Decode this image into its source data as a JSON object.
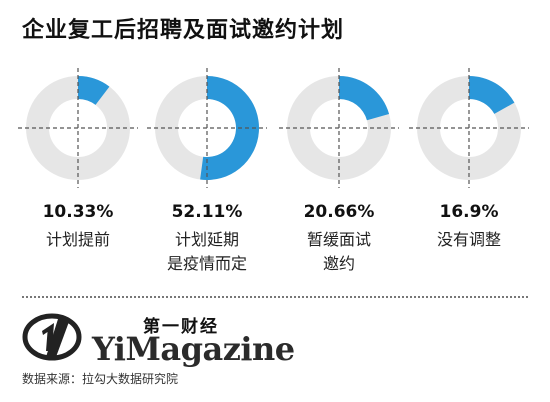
{
  "title": "企业复工后招聘及面试邀约计划",
  "chart_data": {
    "type": "pie",
    "style": "donut",
    "unit": "%",
    "categories": [
      "计划提前",
      "计划延期是疫情而定",
      "暂缓面试邀约",
      "没有调整"
    ],
    "values": [
      10.33,
      52.11,
      20.66,
      16.9
    ],
    "items": [
      {
        "value_label": "10.33%",
        "label_lines": [
          "计划提前"
        ]
      },
      {
        "value_label": "52.11%",
        "label_lines": [
          "计划延期",
          "是疫情而定"
        ]
      },
      {
        "value_label": "20.66%",
        "label_lines": [
          "暂缓面试",
          "邀约"
        ]
      },
      {
        "value_label": "16.9%",
        "label_lines": [
          "没有调整"
        ]
      }
    ],
    "colors": {
      "filled": "#2a97d9",
      "track": "#e6e6e6",
      "crosshair": "#555555"
    }
  },
  "brand": {
    "name_cn": "第一财经",
    "name_en": "YiMagazine",
    "mark_icon": "yicai-logo-icon"
  },
  "source": "数据来源：拉勾大数据研究院"
}
